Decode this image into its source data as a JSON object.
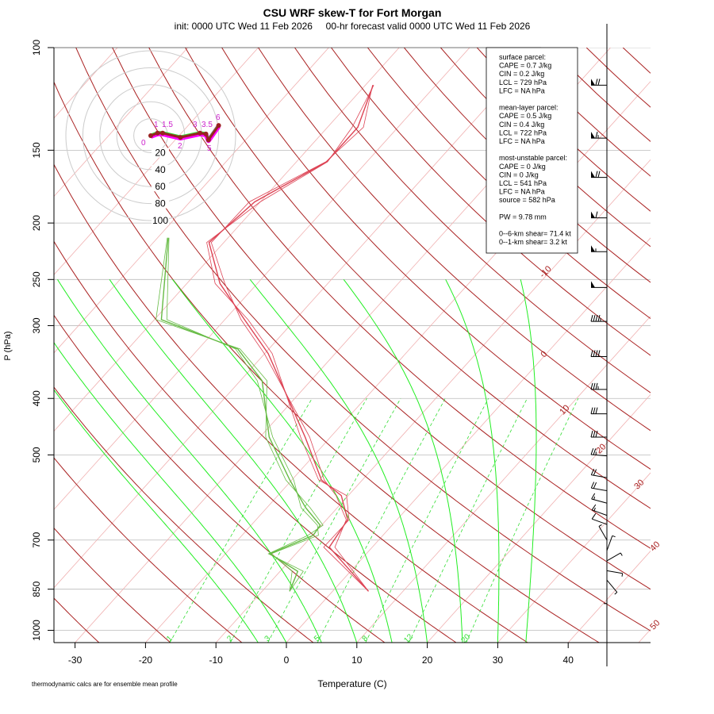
{
  "chart_data": {
    "type": "line",
    "subtype": "skew-T log-P",
    "title": "CSU WRF skew-T for Fort Morgan",
    "subtitle": "init: 0000 UTC Wed 11 Feb 2026     00-hr forecast valid 0000 UTC Wed 11 Feb 2026",
    "xlabel": "Temperature (C)",
    "ylabel": "P (hPa)",
    "footnote": "thermodynamic calcs are for ensemble mean profile",
    "xlim": [
      -33,
      50
    ],
    "ylim": [
      1050,
      100
    ],
    "x_ticks": [
      "-30",
      "-20",
      "-10",
      "0",
      "10",
      "20",
      "30",
      "40"
    ],
    "y_ticks": [
      "100",
      "150",
      "200",
      "250",
      "300",
      "400",
      "500",
      "700",
      "850",
      "1000"
    ],
    "isotherm_labels": [
      "-10",
      "0",
      "10",
      "20",
      "30",
      "40",
      "50"
    ],
    "mixing_ratio_labels": [
      "1",
      "2",
      "3",
      "5",
      "8",
      "12",
      "20"
    ],
    "colors": {
      "temperature": "#dd4455",
      "dewpoint": "#66bb44",
      "dry_adiabat": "#aa2222",
      "isotherm": "#f0b0b0",
      "moist_adiabat": "#22ee22",
      "mixing_ratio": "#33dd33"
    },
    "series": [
      {
        "name": "temperature",
        "p": [
          857,
          720,
          646,
          587,
          552,
          466,
          335,
          293,
          254,
          216,
          184,
          157,
          137,
          116
        ],
        "T": [
          5.1,
          -6.1,
          -7.0,
          -11.0,
          -15.8,
          -23.6,
          -39.5,
          -47.2,
          -55.3,
          -62.1,
          -60.8,
          -55.7,
          -55.7,
          -58.9
        ]
      },
      {
        "name": "dewpoint",
        "p": [
          857,
          792,
          739,
          687,
          660,
          616,
          552,
          466,
          373,
          329,
          293,
          212
        ],
        "T": [
          -6.1,
          -7.5,
          -13.7,
          -9.9,
          -10.2,
          -14.5,
          -20.3,
          -28.7,
          -36.9,
          -44.4,
          -59.0,
          -68.5
        ]
      }
    ],
    "winds": {
      "p": [
        116,
        143,
        167,
        196,
        224,
        258,
        295,
        339,
        386,
        425,
        466,
        502,
        547,
        576,
        605,
        635,
        658,
        700,
        730,
        760,
        790,
        820,
        845
      ],
      "kt": [
        70,
        65,
        70,
        60,
        55,
        50,
        45,
        40,
        35,
        30,
        30,
        25,
        20,
        20,
        15,
        15,
        10,
        5,
        5,
        5,
        5,
        5,
        5
      ],
      "dir": [
        270,
        270,
        270,
        270,
        270,
        270,
        270,
        270,
        270,
        270,
        270,
        275,
        280,
        280,
        285,
        290,
        290,
        330,
        20,
        60,
        100,
        140,
        180
      ]
    },
    "hodograph": {
      "ring_labels": [
        "20",
        "40",
        "60",
        "80",
        "100"
      ],
      "height_labels": [
        "0",
        "1",
        "1.5",
        "2",
        "3",
        "3.5",
        "5",
        "6"
      ],
      "u": [
        0,
        8,
        14,
        35,
        58,
        65,
        68,
        80
      ],
      "v": [
        0,
        3,
        3,
        -2,
        3,
        2,
        -5,
        12
      ]
    },
    "info_box": [
      "surface parcel:",
      "CAPE = 0.7 J/kg",
      "CIN = 0.2 J/kg",
      "LCL = 729 hPa",
      "LFC = NA hPa",
      "",
      "mean-layer parcel:",
      "CAPE = 0.5 J/kg",
      "CIN = 0.4 J/kg",
      "LCL = 722 hPa",
      "LFC = NA hPa",
      "",
      "most-unstable parcel:",
      "CAPE = 0 J/kg",
      "CIN = 0 J/kg",
      "LCL = 541 hPa",
      "LFC = NA hPa",
      "source = 582 hPa",
      "",
      "PW =  9.78 mm",
      "",
      "0--6-km shear= 71.4 kt",
      "0--1-km shear= 3.2 kt"
    ]
  }
}
